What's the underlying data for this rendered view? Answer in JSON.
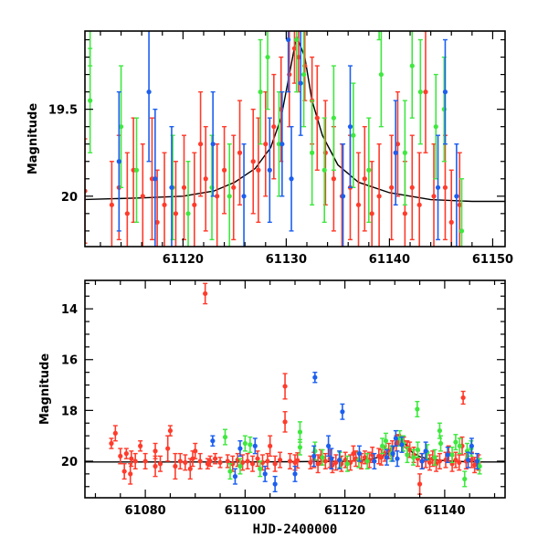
{
  "chart_data": {
    "type": "scatter",
    "description_label": "light curve",
    "colors": {
      "red": "#ff3b2b",
      "green": "#3fe83f",
      "blue": "#1c5ff0",
      "model": "#000000"
    },
    "panels": [
      {
        "name": "top",
        "xlim": [
          61110.5,
          61151.2
        ],
        "ylim": [
          19.05,
          20.29
        ],
        "y_inverted": true,
        "xticks": [
          61120,
          61130,
          61140,
          61150
        ],
        "xtick_labels": [
          "61120",
          "61130",
          "61140",
          "61150"
        ],
        "x_minor_step": 2,
        "yticks": [
          19.5,
          20
        ],
        "ytick_labels": [
          "19.5",
          "20"
        ],
        "y_minor_step": 0.1,
        "xlabel": "",
        "ylabel": "Magnitude"
      },
      {
        "name": "bottom",
        "xlim": [
          61067.9,
          61152.1
        ],
        "ylim": [
          12.88,
          21.44
        ],
        "y_inverted": true,
        "xticks": [
          61080,
          61100,
          61120,
          61140
        ],
        "xtick_labels": [
          "61080",
          "61100",
          "61120",
          "61140"
        ],
        "x_minor_step": 5,
        "yticks": [
          14,
          16,
          18,
          20
        ],
        "ytick_labels": [
          "14",
          "16",
          "18",
          "20"
        ],
        "y_minor_step": 0.5,
        "xlabel": "HJD-2400000",
        "ylabel": "Magnitude"
      }
    ],
    "model": [
      [
        61068,
        20.03
      ],
      [
        61100,
        20.03
      ],
      [
        61110,
        20.02
      ],
      [
        61116,
        20.01
      ],
      [
        61120,
        20.0
      ],
      [
        61123,
        19.97
      ],
      [
        61125,
        19.92
      ],
      [
        61127,
        19.84
      ],
      [
        61128.5,
        19.72
      ],
      [
        61129.5,
        19.55
      ],
      [
        61130.3,
        19.3
      ],
      [
        61131,
        19.08
      ],
      [
        61131.8,
        19.2
      ],
      [
        61132.5,
        19.45
      ],
      [
        61133.5,
        19.65
      ],
      [
        61135,
        19.82
      ],
      [
        61137,
        19.92
      ],
      [
        61140,
        19.98
      ],
      [
        61144,
        20.02
      ],
      [
        61148,
        20.03
      ],
      [
        61152,
        20.03
      ]
    ],
    "series": [
      {
        "name": "red",
        "points": [
          [
            61073.2,
            19.3,
            0.2
          ],
          [
            61074,
            18.9,
            0.3
          ],
          [
            61075,
            19.8,
            0.3
          ],
          [
            61075.8,
            20.4,
            0.3
          ],
          [
            61076.2,
            19.7,
            0.2
          ],
          [
            61077,
            20.5,
            0.4
          ],
          [
            61077.2,
            19.9,
            0.3
          ],
          [
            61078,
            20.0,
            0.3
          ],
          [
            61079,
            19.4,
            0.2
          ],
          [
            61080,
            20.0,
            0.3
          ],
          [
            61082,
            20.2,
            0.4
          ],
          [
            61082,
            19.6,
            0.3
          ],
          [
            61083,
            20.1,
            0.3
          ],
          [
            61084.5,
            19.5,
            0.5
          ],
          [
            61085,
            18.8,
            0.2
          ],
          [
            61086,
            20.2,
            0.5
          ],
          [
            61087,
            20.0,
            0.3
          ],
          [
            61088,
            20.05,
            0.3
          ],
          [
            61089,
            20.3,
            0.4
          ],
          [
            61089.5,
            19.9,
            0.3
          ],
          [
            61090,
            19.6,
            0.3
          ],
          [
            61091,
            20.0,
            0.3
          ],
          [
            61092,
            13.4,
            0.4
          ],
          [
            61092.5,
            20.1,
            0.2
          ],
          [
            61093,
            20.0,
            0.2
          ],
          [
            61094,
            19.9,
            0.2
          ],
          [
            61095,
            20.05,
            0.2
          ],
          [
            61096.5,
            20.0,
            0.25
          ],
          [
            61097.5,
            20.1,
            0.3
          ],
          [
            61098.5,
            19.95,
            0.25
          ],
          [
            61099.5,
            20.05,
            0.3
          ],
          [
            61100.5,
            20.0,
            0.3
          ],
          [
            61101.5,
            20.1,
            0.3
          ],
          [
            61102.5,
            19.9,
            0.3
          ],
          [
            61103.5,
            20.05,
            0.3
          ],
          [
            61104.5,
            20.0,
            0.3
          ],
          [
            61105,
            19.4,
            0.4
          ],
          [
            61106,
            20.1,
            0.3
          ],
          [
            61107,
            19.95,
            0.3
          ],
          [
            61108,
            17.05,
            0.5
          ],
          [
            61108,
            18.45,
            0.4
          ],
          [
            61109,
            20.0,
            0.3
          ],
          [
            61110,
            20.05,
            0.3
          ],
          [
            61110.5,
            19.97,
            0.3
          ],
          [
            61113.1,
            20.05,
            0.25
          ],
          [
            61113.8,
            19.95,
            0.3
          ],
          [
            61114.6,
            20.1,
            0.35
          ],
          [
            61115.2,
            19.85,
            0.3
          ],
          [
            61116.1,
            20.0,
            0.3
          ],
          [
            61117.0,
            19.9,
            0.35
          ],
          [
            61117.5,
            20.15,
            0.3
          ],
          [
            61118.2,
            20.05,
            0.3
          ],
          [
            61119.3,
            20.1,
            0.3
          ],
          [
            61120.1,
            19.95,
            0.3
          ],
          [
            61121.1,
            20.05,
            0.3
          ],
          [
            61121.7,
            19.7,
            0.3
          ],
          [
            61122.2,
            19.9,
            0.3
          ],
          [
            61123.3,
            20.0,
            0.3
          ],
          [
            61124.0,
            19.85,
            0.25
          ],
          [
            61124.9,
            19.95,
            0.3
          ],
          [
            61125.5,
            19.75,
            0.3
          ],
          [
            61126.8,
            19.8,
            0.3
          ],
          [
            61127.3,
            19.85,
            0.3
          ],
          [
            61128.0,
            19.7,
            0.3
          ],
          [
            61128.8,
            19.6,
            0.3
          ],
          [
            61129.5,
            19.5,
            0.3
          ],
          [
            61130.3,
            19.3,
            0.3
          ],
          [
            61130.8,
            19.15,
            0.2
          ],
          [
            61131.2,
            19.2,
            0.2
          ],
          [
            61131.8,
            19.25,
            0.2
          ],
          [
            61132.5,
            19.45,
            0.25
          ],
          [
            61133.0,
            19.55,
            0.3
          ],
          [
            61133.8,
            19.75,
            0.3
          ],
          [
            61134.6,
            19.9,
            0.3
          ],
          [
            61135,
            20.9,
            0.4
          ],
          [
            61135.4,
            20.0,
            0.3
          ],
          [
            61136.2,
            19.95,
            0.3
          ],
          [
            61137.0,
            20.05,
            0.3
          ],
          [
            61137.6,
            19.9,
            0.3
          ],
          [
            61138.3,
            20.1,
            0.3
          ],
          [
            61139.0,
            20.0,
            0.3
          ],
          [
            61140.2,
            19.95,
            0.3
          ],
          [
            61140.8,
            19.7,
            0.3
          ],
          [
            61141.5,
            20.1,
            0.3
          ],
          [
            61142.2,
            19.95,
            0.3
          ],
          [
            61142.9,
            20.05,
            0.3
          ],
          [
            61143.5,
            19.4,
            0.35
          ],
          [
            61143.7,
            17.5,
            0.25
          ],
          [
            61144.3,
            20.0,
            0.3
          ],
          [
            61145.4,
            19.95,
            0.3
          ],
          [
            61146.0,
            20.15,
            0.3
          ],
          [
            61146.8,
            20.05,
            0.3
          ]
        ]
      },
      {
        "name": "green",
        "points": [
          [
            61096,
            19.05,
            0.3
          ],
          [
            61097,
            20.4,
            0.3
          ],
          [
            61099,
            20.2,
            0.3
          ],
          [
            61100,
            19.3,
            0.3
          ],
          [
            61101,
            19.35,
            0.3
          ],
          [
            61103,
            20.3,
            0.3
          ],
          [
            61111,
            18.85,
            0.4
          ],
          [
            61111,
            19.45,
            0.3
          ],
          [
            61114,
            19.6,
            0.35
          ],
          [
            61115.5,
            19.85,
            0.3
          ],
          [
            61119,
            19.95,
            0.3
          ],
          [
            61120.5,
            20.1,
            0.3
          ],
          [
            61122.8,
            19.95,
            0.3
          ],
          [
            61124.5,
            20.0,
            0.3
          ],
          [
            61127.5,
            19.4,
            0.3
          ],
          [
            61128.2,
            19.2,
            0.3
          ],
          [
            61129.3,
            19.7,
            0.3
          ],
          [
            61131,
            19.1,
            0.3
          ],
          [
            61131.7,
            19.3,
            0.3
          ],
          [
            61132.5,
            19.75,
            0.3
          ],
          [
            61133.7,
            19.85,
            0.3
          ],
          [
            61134.5,
            17.95,
            0.3
          ],
          [
            61134.6,
            19.55,
            0.3
          ],
          [
            61136.5,
            19.65,
            0.3
          ],
          [
            61138,
            19.85,
            0.3
          ],
          [
            61139.0,
            18.8,
            0.3
          ],
          [
            61139.2,
            19.3,
            0.3
          ],
          [
            61141.5,
            19.75,
            0.3
          ],
          [
            61142.2,
            19.25,
            0.3
          ],
          [
            61143.0,
            19.4,
            0.3
          ],
          [
            61144,
            20.7,
            0.3
          ],
          [
            61144.5,
            19.6,
            0.3
          ],
          [
            61145.3,
            19.5,
            0.3
          ],
          [
            61147,
            20.2,
            0.3
          ]
        ]
      },
      {
        "name": "blue",
        "points": [
          [
            61093.5,
            19.2,
            0.2
          ],
          [
            61098,
            20.6,
            0.3
          ],
          [
            61099,
            19.5,
            0.3
          ],
          [
            61102,
            19.4,
            0.3
          ],
          [
            61104,
            20.5,
            0.3
          ],
          [
            61106,
            20.9,
            0.3
          ],
          [
            61110,
            20.5,
            0.3
          ],
          [
            61113.8,
            19.8,
            0.4
          ],
          [
            61114,
            16.7,
            0.2
          ],
          [
            61116.7,
            19.4,
            0.4
          ],
          [
            61117.3,
            19.9,
            0.4
          ],
          [
            61118.9,
            19.95,
            0.35
          ],
          [
            61119.5,
            18.05,
            0.3
          ],
          [
            61122.9,
            19.7,
            0.3
          ],
          [
            61125.9,
            20.0,
            0.3
          ],
          [
            61128.4,
            19.85,
            0.3
          ],
          [
            61129.6,
            19.7,
            0.3
          ],
          [
            61130.2,
            19.1,
            0.3
          ],
          [
            61130.5,
            19.9,
            0.3
          ],
          [
            61131.4,
            19.35,
            0.3
          ],
          [
            61135.5,
            20.0,
            0.3
          ],
          [
            61136.2,
            19.6,
            0.35
          ],
          [
            61140.6,
            19.75,
            0.3
          ],
          [
            61144.7,
            19.95,
            0.3
          ],
          [
            61145.4,
            19.4,
            0.3
          ],
          [
            61146.5,
            20.0,
            0.3
          ]
        ]
      }
    ]
  }
}
